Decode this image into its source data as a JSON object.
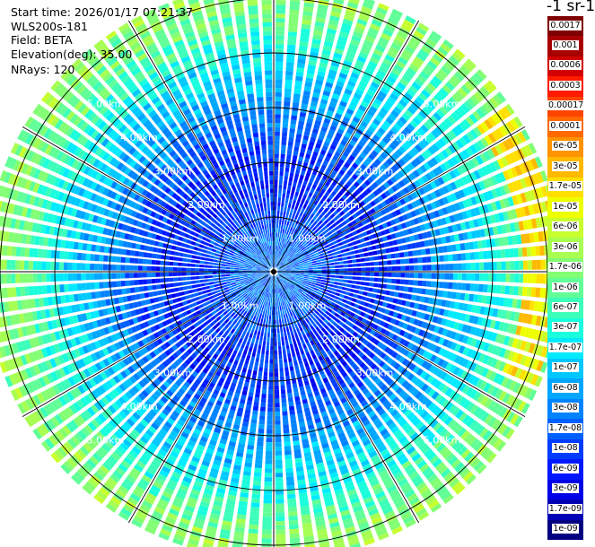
{
  "header": {
    "start_time": "Start time: 2026/01/17 07:21:37",
    "instrument": "WLS200s-181",
    "field": "Field: BETA",
    "elevation": "Elevation(deg): 35.00",
    "nrays": "NRays: 120"
  },
  "colorbar": {
    "title": "-1 sr-1",
    "bins": [
      {
        "label": "0.0017",
        "color": "#7f0000"
      },
      {
        "label": "0.001",
        "color": "#a80000"
      },
      {
        "label": "0.0006",
        "color": "#d20000"
      },
      {
        "label": "0.0003",
        "color": "#ff1a00"
      },
      {
        "label": "0.00017",
        "color": "#ff4400"
      },
      {
        "label": "0.0001",
        "color": "#ff6a00"
      },
      {
        "label": "6e-05",
        "color": "#ff9300"
      },
      {
        "label": "3e-05",
        "color": "#ffb900"
      },
      {
        "label": "1.7e-05",
        "color": "#ffe000"
      },
      {
        "label": "1e-05",
        "color": "#eeff00"
      },
      {
        "label": "6e-06",
        "color": "#c8ff2e"
      },
      {
        "label": "3e-06",
        "color": "#a6ff51"
      },
      {
        "label": "1.7e-06",
        "color": "#83ff74"
      },
      {
        "label": "1e-06",
        "color": "#60ff97"
      },
      {
        "label": "6e-07",
        "color": "#3cffba"
      },
      {
        "label": "3e-07",
        "color": "#19ffdd"
      },
      {
        "label": "1.7e-07",
        "color": "#00eaff"
      },
      {
        "label": "1e-07",
        "color": "#00c8ff"
      },
      {
        "label": "6e-08",
        "color": "#00a6ff"
      },
      {
        "label": "3e-08",
        "color": "#0083ff"
      },
      {
        "label": "1.7e-08",
        "color": "#0060ff"
      },
      {
        "label": "1e-08",
        "color": "#003cff"
      },
      {
        "label": "6e-09",
        "color": "#0018ff"
      },
      {
        "label": "3e-09",
        "color": "#0000e8"
      },
      {
        "label": "1.7e-09",
        "color": "#0000b4"
      },
      {
        "label": "1e-09",
        "color": "#000080"
      }
    ]
  },
  "chart_data": {
    "type": "heatmap",
    "projection": "polar (PPI scan)",
    "field": "BETA",
    "n_rays": 120,
    "range_rings_km": [
      1,
      2,
      3,
      4,
      5
    ],
    "ring_labels": [
      "1.00km",
      "2.00km",
      "3.00km",
      "4.00km",
      "5.00km"
    ],
    "radial_spokes_deg": [
      0,
      30,
      60,
      90,
      120,
      150,
      180,
      210,
      240,
      270,
      300,
      330
    ],
    "max_range_km": 5.3,
    "log_beta_profile_by_range_km": [
      {
        "range_km": 0.5,
        "log10_beta": -7.6
      },
      {
        "range_km": 1.0,
        "log10_beta": -7.9
      },
      {
        "range_km": 1.5,
        "log10_beta": -8.1
      },
      {
        "range_km": 2.0,
        "log10_beta": -8.1
      },
      {
        "range_km": 2.5,
        "log10_beta": -7.8
      },
      {
        "range_km": 3.0,
        "log10_beta": -7.4
      },
      {
        "range_km": 3.5,
        "log10_beta": -7.0
      },
      {
        "range_km": 4.0,
        "log10_beta": -6.6
      },
      {
        "range_km": 4.5,
        "log10_beta": -6.1
      },
      {
        "range_km": 5.0,
        "log10_beta": -5.7
      }
    ],
    "enhanced_band": {
      "azimuth_deg": [
        55,
        115
      ],
      "range_km": [
        4.6,
        5.2
      ],
      "log10_beta": -4.9
    },
    "legend": "right",
    "grid": true
  }
}
